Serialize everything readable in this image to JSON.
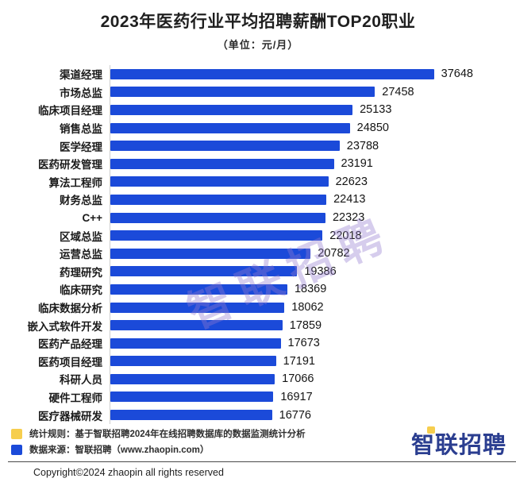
{
  "title": "2023年医药行业平均招聘薪酬TOP20职业",
  "subtitle": "（单位：元/月）",
  "chart_data": {
    "type": "bar",
    "orientation": "horizontal",
    "title": "2023年医药行业平均招聘薪酬TOP20职业",
    "unit_label": "元/月",
    "xlabel": "",
    "ylabel": "",
    "xlim": [
      0,
      38000
    ],
    "grid": false,
    "legend_position": "none",
    "bar_color": "#1b4ad9",
    "categories": [
      "渠道经理",
      "市场总监",
      "临床项目经理",
      "销售总监",
      "医学经理",
      "医药研发管理",
      "算法工程师",
      "财务总监",
      "C++",
      "区域总监",
      "运营总监",
      "药理研究",
      "临床研究",
      "临床数据分析",
      "嵌入式软件开发",
      "医药产品经理",
      "医药项目经理",
      "科研人员",
      "硬件工程师",
      "医疗器械研发"
    ],
    "values": [
      37648,
      27458,
      25133,
      24850,
      23788,
      23191,
      22623,
      22413,
      22323,
      22018,
      20782,
      19386,
      18369,
      18062,
      17859,
      17673,
      17191,
      17066,
      16917,
      16776
    ],
    "max_value": 37648
  },
  "watermark": {
    "text": "智联招聘",
    "color": "rgba(148,124,208,0.38)"
  },
  "footer": {
    "legend": [
      {
        "color": "#f6ce4e",
        "text": "统计规则：基于智联招聘2024年在线招聘数据库的数据监测统计分析"
      },
      {
        "color": "#1b4ad9",
        "text": "数据来源：智联招聘（www.zhaopin.com）"
      }
    ],
    "copyright": "Copyright©2024 zhaopin all rights reserved",
    "logo_text": "智联招聘",
    "logo_color": "#2b3e90",
    "logo_accent_color": "#f6ce4e"
  }
}
